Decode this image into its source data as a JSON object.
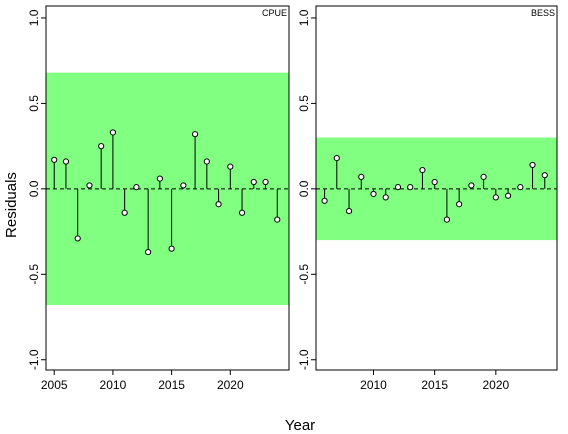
{
  "figure": {
    "ylabel": "Residuals",
    "xlabel": "Year"
  },
  "chart_data": [
    {
      "type": "lollipop",
      "panel_label": "CPUE",
      "band": {
        "lower": -0.68,
        "upper": 0.68,
        "color": "#80ff80"
      },
      "xlim": [
        2004.3,
        2025.0
      ],
      "ylim": [
        -1.06,
        1.07
      ],
      "xticks": [
        2005,
        2010,
        2015,
        2020
      ],
      "yticks": [
        -1.0,
        -0.5,
        0.0,
        0.5,
        1.0
      ],
      "ytick_labels": [
        "-1.0",
        "-0.5",
        "0.0",
        "0.5",
        "1.0"
      ],
      "grid": false,
      "x": [
        2005,
        2006,
        2007,
        2008,
        2009,
        2010,
        2011,
        2012,
        2013,
        2014,
        2015,
        2016,
        2017,
        2018,
        2019,
        2020,
        2021,
        2022,
        2023,
        2024
      ],
      "y": [
        0.17,
        0.16,
        -0.29,
        0.02,
        0.25,
        0.33,
        -0.14,
        0.01,
        -0.37,
        0.06,
        -0.35,
        0.02,
        0.32,
        0.16,
        -0.09,
        0.13,
        -0.14,
        0.04,
        0.04,
        -0.18
      ]
    },
    {
      "type": "lollipop",
      "panel_label": "BESS",
      "band": {
        "lower": -0.3,
        "upper": 0.3,
        "color": "#80ff80"
      },
      "xlim": [
        2005.3,
        2025.0
      ],
      "ylim": [
        -1.06,
        1.07
      ],
      "xticks": [
        2010,
        2015,
        2020
      ],
      "yticks": [
        -1.0,
        -0.5,
        0.0,
        0.5,
        1.0
      ],
      "ytick_labels": [
        "-1.0",
        "-0.5",
        "0.0",
        "0.5",
        "1.0"
      ],
      "grid": false,
      "x": [
        2006,
        2007,
        2008,
        2009,
        2010,
        2011,
        2012,
        2013,
        2014,
        2015,
        2016,
        2017,
        2018,
        2019,
        2020,
        2021,
        2022,
        2023,
        2024
      ],
      "y": [
        -0.07,
        0.18,
        -0.13,
        0.07,
        -0.03,
        -0.05,
        0.01,
        0.01,
        0.11,
        0.04,
        -0.18,
        -0.09,
        0.02,
        0.07,
        -0.05,
        -0.04,
        0.01,
        0.14,
        0.08
      ]
    }
  ]
}
